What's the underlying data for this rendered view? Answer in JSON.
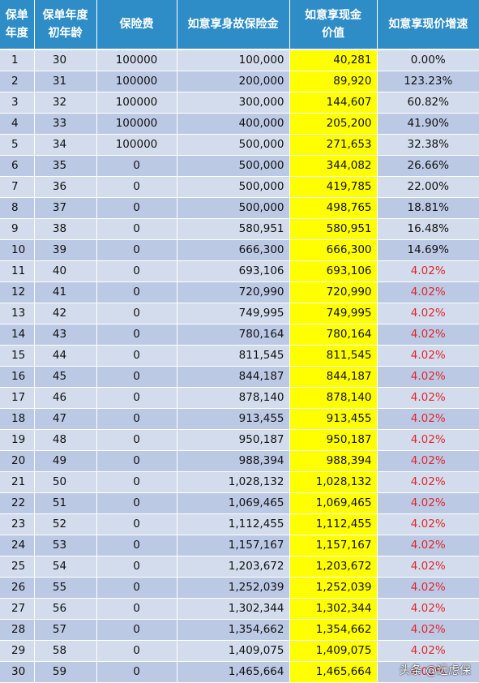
{
  "headers": [
    [
      "保单",
      "年度"
    ],
    [
      "保单年度",
      "初年龄"
    ],
    [
      "保险费"
    ],
    [
      "如意享身故保险金"
    ],
    [
      "如意享现金",
      "价值"
    ],
    [
      "如意享现价增速"
    ]
  ],
  "rows": [
    [
      "1",
      "30",
      "100000",
      "100,000",
      "40,281",
      "0.00%"
    ],
    [
      "2",
      "31",
      "100000",
      "200,000",
      "89,920",
      "123.23%"
    ],
    [
      "3",
      "32",
      "100000",
      "300,000",
      "144,607",
      "60.82%"
    ],
    [
      "4",
      "33",
      "100000",
      "400,000",
      "205,200",
      "41.90%"
    ],
    [
      "5",
      "34",
      "100000",
      "500,000",
      "271,653",
      "32.38%"
    ],
    [
      "6",
      "35",
      "0",
      "500,000",
      "344,082",
      "26.66%"
    ],
    [
      "7",
      "36",
      "0",
      "500,000",
      "419,785",
      "22.00%"
    ],
    [
      "8",
      "37",
      "0",
      "500,000",
      "498,765",
      "18.81%"
    ],
    [
      "9",
      "38",
      "0",
      "580,951",
      "580,951",
      "16.48%"
    ],
    [
      "10",
      "39",
      "0",
      "666,300",
      "666,300",
      "14.69%"
    ],
    [
      "11",
      "40",
      "0",
      "693,106",
      "693,106",
      "4.02%"
    ],
    [
      "12",
      "41",
      "0",
      "720,990",
      "720,990",
      "4.02%"
    ],
    [
      "13",
      "42",
      "0",
      "749,995",
      "749,995",
      "4.02%"
    ],
    [
      "14",
      "43",
      "0",
      "780,164",
      "780,164",
      "4.02%"
    ],
    [
      "15",
      "44",
      "0",
      "811,545",
      "811,545",
      "4.02%"
    ],
    [
      "16",
      "45",
      "0",
      "844,187",
      "844,187",
      "4.02%"
    ],
    [
      "17",
      "46",
      "0",
      "878,140",
      "878,140",
      "4.02%"
    ],
    [
      "18",
      "47",
      "0",
      "913,455",
      "913,455",
      "4.02%"
    ],
    [
      "19",
      "48",
      "0",
      "950,187",
      "950,187",
      "4.02%"
    ],
    [
      "20",
      "49",
      "0",
      "988,394",
      "988,394",
      "4.02%"
    ],
    [
      "21",
      "50",
      "0",
      "1,028,132",
      "1,028,132",
      "4.02%"
    ],
    [
      "22",
      "51",
      "0",
      "1,069,465",
      "1,069,465",
      "4.02%"
    ],
    [
      "23",
      "52",
      "0",
      "1,112,455",
      "1,112,455",
      "4.02%"
    ],
    [
      "24",
      "53",
      "0",
      "1,157,167",
      "1,157,167",
      "4.02%"
    ],
    [
      "25",
      "54",
      "0",
      "1,203,672",
      "1,203,672",
      "4.02%"
    ],
    [
      "26",
      "55",
      "0",
      "1,252,039",
      "1,252,039",
      "4.02%"
    ],
    [
      "27",
      "56",
      "0",
      "1,302,344",
      "1,302,344",
      "4.02%"
    ],
    [
      "28",
      "57",
      "0",
      "1,354,662",
      "1,354,662",
      "4.02%"
    ],
    [
      "29",
      "58",
      "0",
      "1,409,075",
      "1,409,075",
      "4.02%"
    ],
    [
      "30",
      "59",
      "0",
      "1,465,664",
      "1,465,664",
      "4.02%"
    ]
  ],
  "highlight_growth_from_year": 11,
  "watermark": "头条 @远虑保",
  "colors": {
    "header_bg": "#2e8dc6",
    "row_light": "#d3dcec",
    "row_dark": "#bcc9e5",
    "cash_value_highlight": "#ffff00",
    "growth_red": "#e0262c"
  }
}
